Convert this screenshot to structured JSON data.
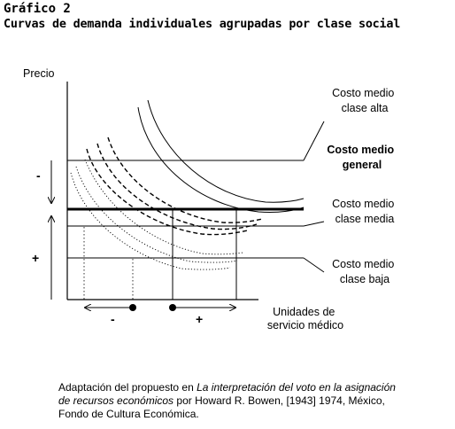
{
  "figure": {
    "number": "Gráfico 2",
    "title": "Curvas de demanda individuales agrupadas por clase social"
  },
  "chart_data": {
    "type": "line",
    "ylabel": "Precio",
    "xlabel": [
      "Unidades de",
      "servicio médico"
    ],
    "series": [
      {
        "name_lines": [
          "Costo medio",
          "clase alta"
        ],
        "style": "thin-line"
      },
      {
        "name_lines": [
          "Costo medio",
          "general"
        ],
        "style": "thick-line"
      },
      {
        "name_lines": [
          "Costo medio",
          "clase media"
        ],
        "style": "thin-line"
      },
      {
        "name_lines": [
          "Costo medio",
          "clase baja"
        ],
        "style": "thin-line"
      }
    ],
    "curve_groups": [
      {
        "group": "upper",
        "style": "solid",
        "count": 2
      },
      {
        "group": "middle",
        "style": "dashed",
        "count": 3
      },
      {
        "group": "lower",
        "style": "dotted",
        "count": 3
      }
    ],
    "price_annotations": {
      "upper_sign": "-",
      "lower_sign": "+"
    },
    "quantity_annotations": {
      "left_sign": "-",
      "right_sign": "+"
    }
  },
  "caption": {
    "before": "Adaptación del propuesto en ",
    "italic": "La interpretación del voto en la asignación de recursos económicos",
    "after": " por Howard R. Bowen, [1943] 1974, México, Fondo de Cultura Económica."
  }
}
